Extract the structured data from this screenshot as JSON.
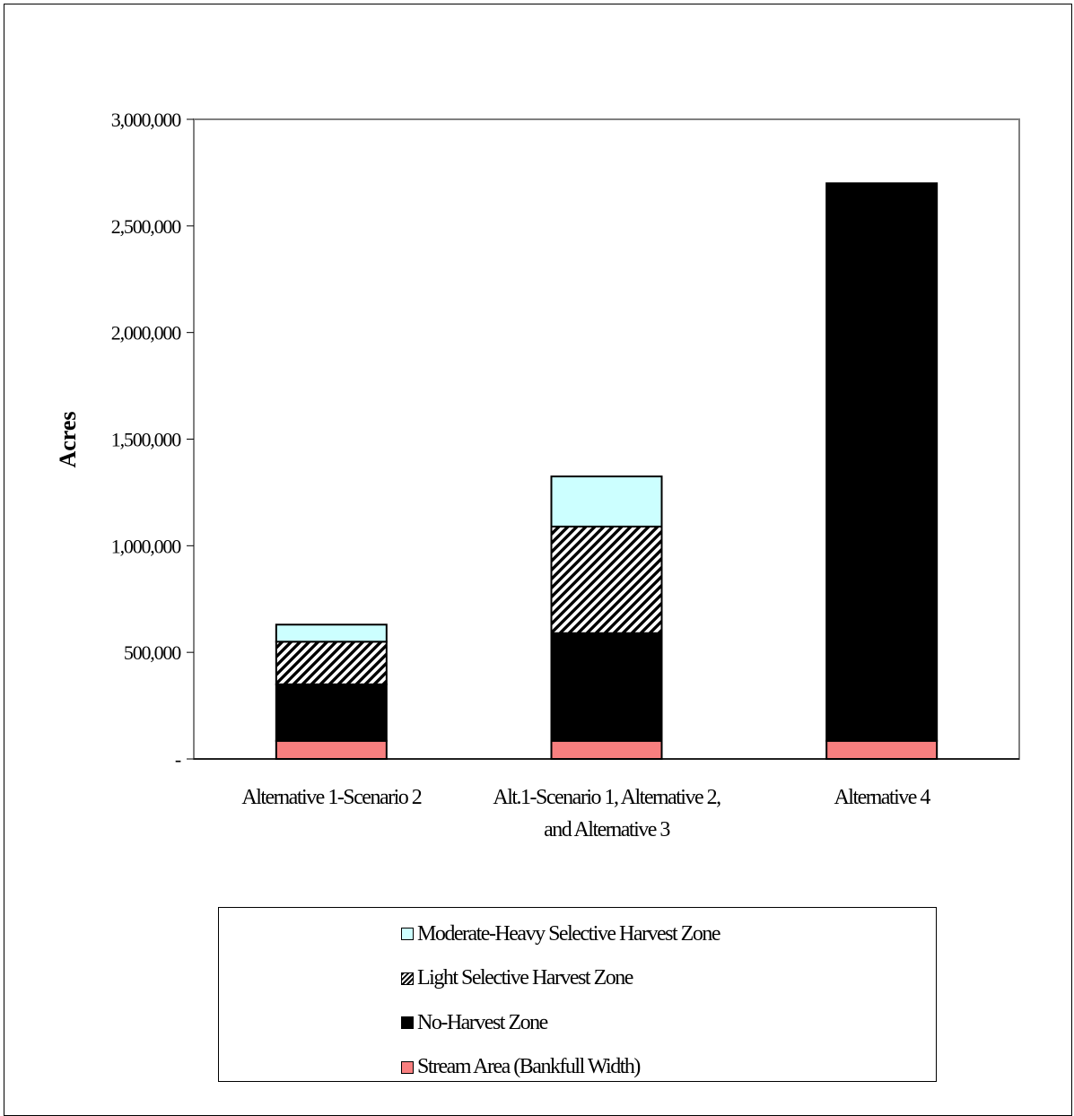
{
  "chart_data": {
    "type": "bar",
    "stacked": true,
    "title": "",
    "xlabel": "",
    "ylabel": "Acres",
    "ylim": [
      0,
      3000000
    ],
    "yticks": [
      0,
      500000,
      1000000,
      1500000,
      2000000,
      2500000,
      3000000
    ],
    "ytick_labels": [
      "-",
      "500,000",
      "1,000,000",
      "1,500,000",
      "2,000,000",
      "2,500,000",
      "3,000,000"
    ],
    "grid": false,
    "legend_position": "bottom",
    "categories": [
      [
        "Alternative 1-Scenario 2"
      ],
      [
        "Alt.1-Scenario 1, Alternative 2,",
        "and Alternative 3"
      ],
      [
        "Alternative 4"
      ]
    ],
    "series": [
      {
        "name": "Stream Area (Bankfull Width)",
        "color": "#f87f7f",
        "pattern": "solid",
        "values": [
          85000,
          85000,
          85000
        ]
      },
      {
        "name": "No-Harvest Zone",
        "color": "#000000",
        "pattern": "solid",
        "values": [
          265000,
          505000,
          2615000
        ]
      },
      {
        "name": "Light Selective Harvest Zone",
        "color": "#000000",
        "pattern": "hatch",
        "values": [
          200000,
          500000,
          0
        ]
      },
      {
        "name": "Moderate-Heavy Selective Harvest Zone",
        "color": "#ccffff",
        "pattern": "solid",
        "values": [
          80000,
          235000,
          0
        ]
      }
    ]
  },
  "legend": {
    "items": [
      {
        "label": "Moderate-Heavy Selective Harvest Zone",
        "color": "#ccffff",
        "pattern": "solid"
      },
      {
        "label": "Light Selective Harvest Zone",
        "color": "#000000",
        "pattern": "hatch"
      },
      {
        "label": "No-Harvest Zone",
        "color": "#000000",
        "pattern": "solid"
      },
      {
        "label": "Stream Area (Bankfull Width)",
        "color": "#f87f7f",
        "pattern": "solid"
      }
    ]
  }
}
